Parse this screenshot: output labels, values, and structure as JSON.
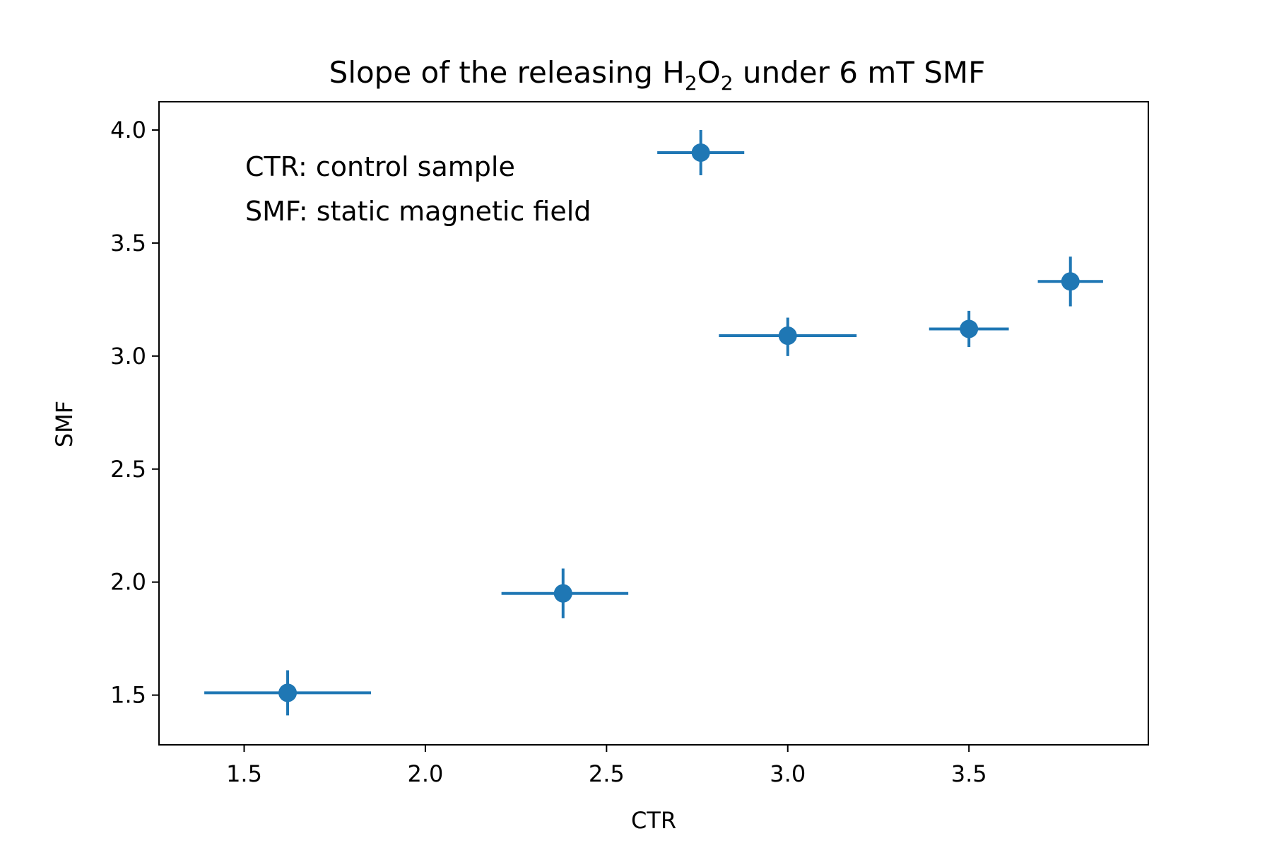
{
  "chart_data": {
    "type": "scatter",
    "title": {
      "prefix": "Slope of the releasing H",
      "sub1": "2",
      "mid": "O",
      "sub2": "2",
      "suffix": " under 6 mT SMF"
    },
    "xlabel": "CTR",
    "ylabel": "SMF",
    "xlim": [
      1.265,
      3.995
    ],
    "ylim": [
      1.28,
      4.125
    ],
    "xticks": [
      1.5,
      2.0,
      2.5,
      3.0,
      3.5
    ],
    "xtick_labels": [
      "1.5",
      "2.0",
      "2.5",
      "3.0",
      "3.5"
    ],
    "yticks": [
      1.5,
      2.0,
      2.5,
      3.0,
      3.5,
      4.0
    ],
    "ytick_labels": [
      "1.5",
      "2.0",
      "2.5",
      "3.0",
      "3.5",
      "4.0"
    ],
    "grid": false,
    "annotations": [
      "CTR: control sample",
      "SMF: static magnetic field"
    ],
    "color": "#1f77b4",
    "points": [
      {
        "x": 1.62,
        "y": 1.51,
        "xerr": [
          1.39,
          1.85
        ],
        "yerr": [
          1.41,
          1.61
        ]
      },
      {
        "x": 2.38,
        "y": 1.95,
        "xerr": [
          2.21,
          2.56
        ],
        "yerr": [
          1.84,
          2.06
        ]
      },
      {
        "x": 2.76,
        "y": 3.9,
        "xerr": [
          2.64,
          2.88
        ],
        "yerr": [
          3.8,
          4.0
        ]
      },
      {
        "x": 3.0,
        "y": 3.09,
        "xerr": [
          2.81,
          3.19
        ],
        "yerr": [
          3.0,
          3.17
        ]
      },
      {
        "x": 3.5,
        "y": 3.12,
        "xerr": [
          3.39,
          3.61
        ],
        "yerr": [
          3.04,
          3.2
        ]
      },
      {
        "x": 3.78,
        "y": 3.33,
        "xerr": [
          3.69,
          3.87
        ],
        "yerr": [
          3.22,
          3.44
        ]
      }
    ]
  }
}
